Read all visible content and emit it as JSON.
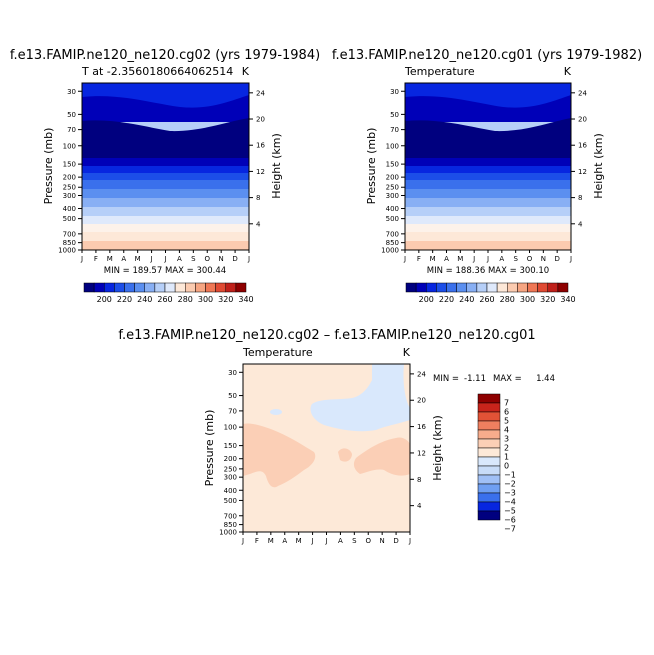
{
  "colors": {
    "abs": [
      "#00007f",
      "#0000b8",
      "#0726e0",
      "#1c4ee8",
      "#3a70ec",
      "#5b8ff0",
      "#88aff4",
      "#b6cff8",
      "#dfe9fb",
      "#fde8d8",
      "#fbcbb0",
      "#f6a582",
      "#ef7755",
      "#e04a33",
      "#c0201a",
      "#8e0000"
    ],
    "diff": [
      "#00007f",
      "#0726e0",
      "#3a70ec",
      "#6f9ff2",
      "#a0c0f6",
      "#c8dcf8",
      "#d9e8fc",
      "#fde9d8",
      "#fbcfb6",
      "#f7ac8c",
      "#ef7f5f",
      "#e25236",
      "#c8241b",
      "#8e0000"
    ]
  },
  "chart_data": [
    {
      "type": "contour",
      "title": "f.e13.FAMIP.ne120_ne120.cg02 (yrs 1979-1984)",
      "subtitle_left": "T at -2.3560180664062514",
      "subtitle_right": "K",
      "xlabel": "",
      "ylabel": "Pressure (mb)",
      "ylabel_right": "Height (km)",
      "x_ticks": [
        "J",
        "F",
        "M",
        "A",
        "M",
        "J",
        "J",
        "A",
        "S",
        "O",
        "N",
        "D",
        "J"
      ],
      "y_ticks": [
        30,
        50,
        70,
        100,
        150,
        200,
        250,
        300,
        400,
        500,
        700,
        850,
        1000
      ],
      "right_ticks": [
        24,
        20,
        16,
        12,
        8,
        4
      ],
      "min_max_text": "MIN = 189.57  MAX = 300.44",
      "min": 189.57,
      "max": 300.44,
      "colorbar_labels": [
        "200",
        "220",
        "240",
        "260",
        "280",
        "300",
        "320",
        "340"
      ],
      "colorbar_levels": [
        190,
        200,
        210,
        220,
        230,
        240,
        250,
        260,
        270,
        280,
        290,
        300,
        310,
        320,
        330,
        340
      ]
    },
    {
      "type": "contour",
      "title": "f.e13.FAMIP.ne120_ne120.cg01 (yrs 1979-1982)",
      "subtitle_left": "Temperature",
      "subtitle_right": "K",
      "xlabel": "",
      "ylabel": "Pressure (mb)",
      "ylabel_right": "Height (km)",
      "x_ticks": [
        "J",
        "F",
        "M",
        "A",
        "M",
        "J",
        "J",
        "A",
        "S",
        "O",
        "N",
        "D",
        "J"
      ],
      "y_ticks": [
        30,
        50,
        70,
        100,
        150,
        200,
        250,
        300,
        400,
        500,
        700,
        850,
        1000
      ],
      "right_ticks": [
        24,
        20,
        16,
        12,
        8,
        4
      ],
      "min_max_text": "MIN = 188.36  MAX = 300.10",
      "min": 188.36,
      "max": 300.1,
      "colorbar_labels": [
        "200",
        "220",
        "240",
        "260",
        "280",
        "300",
        "320",
        "340"
      ],
      "colorbar_levels": [
        190,
        200,
        210,
        220,
        230,
        240,
        250,
        260,
        270,
        280,
        290,
        300,
        310,
        320,
        330,
        340
      ]
    },
    {
      "type": "contour",
      "title": "f.e13.FAMIP.ne120_ne120.cg02 – f.e13.FAMIP.ne120_ne120.cg01",
      "subtitle_left": "Temperature",
      "subtitle_right": "K",
      "xlabel": "",
      "ylabel": "Pressure (mb)",
      "ylabel_right": "Height (km)",
      "x_ticks": [
        "J",
        "F",
        "M",
        "A",
        "M",
        "J",
        "J",
        "A",
        "S",
        "O",
        "N",
        "D",
        "J"
      ],
      "y_ticks": [
        30,
        50,
        70,
        100,
        150,
        200,
        250,
        300,
        400,
        500,
        700,
        850,
        1000
      ],
      "right_ticks": [
        24,
        20,
        16,
        12,
        8,
        4
      ],
      "min_label": "MIN =",
      "min_value": "-1.11",
      "max_label": "MAX =",
      "max_value": "1.44",
      "min": -1.11,
      "max": 1.44,
      "colorbar_labels": [
        "7",
        "6",
        "5",
        "4",
        "3",
        "2",
        "1",
        "0",
        "−1",
        "−2",
        "−3",
        "−4",
        "−5",
        "−6",
        "−7"
      ]
    }
  ]
}
